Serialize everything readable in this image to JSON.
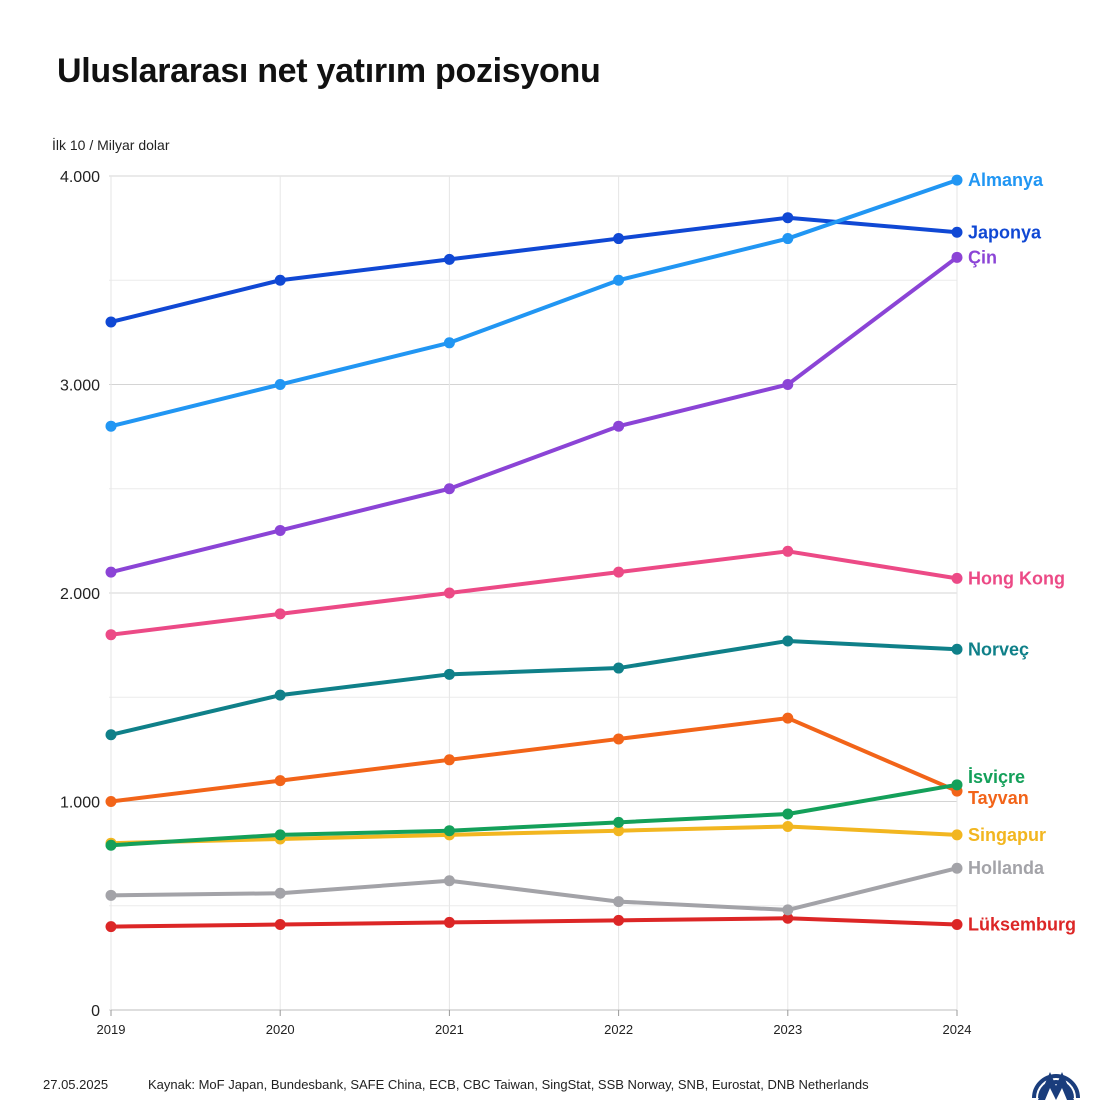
{
  "title": "Uluslararası net yatırım pozisyonu",
  "unit_label": "İlk 10 / Milyar dolar",
  "footer": {
    "date": "27.05.2025",
    "source": "Kaynak: MoF Japan, Bundesbank, SAFE China, ECB, CBC Taiwan, SingStat, SSB Norway, SNB, Eurostat, DNB Netherlands"
  },
  "logo": {
    "icon": "aa-logo-icon",
    "color": "#1a3d7c"
  },
  "chart_data": {
    "type": "line",
    "title": "Uluslararası net yatırım pozisyonu",
    "ylabel": "İlk 10 / Milyar dolar",
    "x": [
      2019,
      2020,
      2021,
      2022,
      2023,
      2024
    ],
    "x_tick_labels": [
      "2019",
      "2020",
      "2021",
      "2022",
      "2023",
      "2024"
    ],
    "ylim": [
      0,
      4000
    ],
    "y_ticks": [
      0,
      1000,
      2000,
      3000,
      4000
    ],
    "y_tick_labels": [
      "0",
      "1.000",
      "2.000",
      "3.000",
      "4.000"
    ],
    "grid": true,
    "legend": "direct labels at right end of lines",
    "series": [
      {
        "name": "Almanya",
        "color": "#2196f3",
        "values": [
          2800,
          3000,
          3200,
          3500,
          3700,
          3980
        ]
      },
      {
        "name": "Japonya",
        "color": "#1048d4",
        "values": [
          3300,
          3500,
          3600,
          3700,
          3800,
          3730
        ]
      },
      {
        "name": "Çin",
        "color": "#8b44d6",
        "values": [
          2100,
          2300,
          2500,
          2800,
          3000,
          3610
        ]
      },
      {
        "name": "Hong Kong",
        "color": "#ec4a86",
        "values": [
          1800,
          1900,
          2000,
          2100,
          2200,
          2070
        ]
      },
      {
        "name": "Norveç",
        "color": "#0f8089",
        "values": [
          1320,
          1510,
          1610,
          1640,
          1770,
          1730
        ]
      },
      {
        "name": "İsviçre",
        "color": "#14a05a",
        "values": [
          790,
          840,
          860,
          900,
          940,
          1080
        ]
      },
      {
        "name": "Tayvan",
        "color": "#f26419",
        "values": [
          1000,
          1100,
          1200,
          1300,
          1400,
          1050
        ]
      },
      {
        "name": "Singapur",
        "color": "#f2b620",
        "values": [
          800,
          820,
          840,
          860,
          880,
          840
        ]
      },
      {
        "name": "Hollanda",
        "color": "#a3a3a8",
        "values": [
          550,
          560,
          620,
          520,
          480,
          680
        ]
      },
      {
        "name": "Lüksemburg",
        "color": "#dc2626",
        "values": [
          400,
          410,
          420,
          430,
          440,
          410
        ]
      }
    ]
  }
}
